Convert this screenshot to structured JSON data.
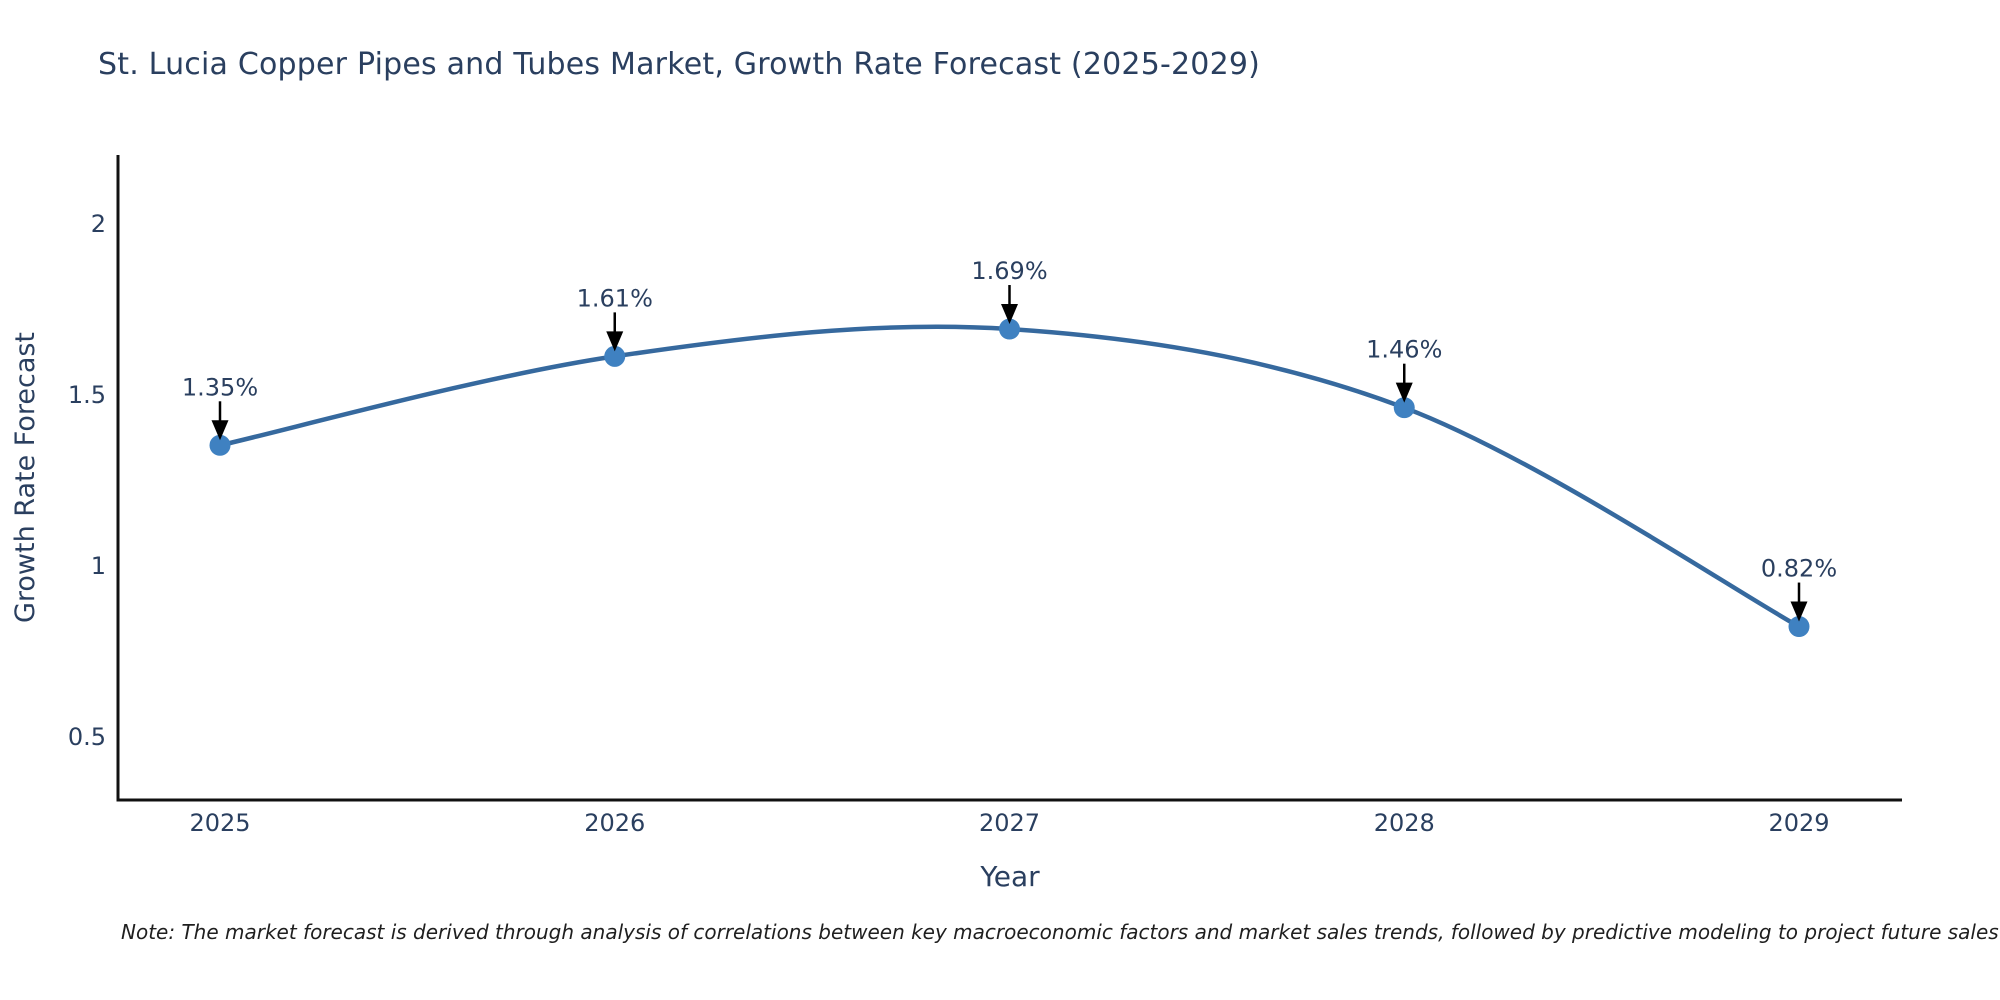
{
  "title": {
    "text": "St. Lucia Copper Pipes and Tubes Market, Growth Rate Forecast (2025-2029)",
    "color": "#2a3f5f"
  },
  "note": {
    "text": "Note: The market forecast is derived through analysis of correlations between key macroeconomic factors and market sales trends, followed by predictive modeling to project future sales"
  },
  "chart_data": {
    "type": "line",
    "x": [
      2025,
      2026,
      2027,
      2028,
      2029
    ],
    "values": [
      1.35,
      1.61,
      1.69,
      1.46,
      0.82
    ],
    "point_labels": [
      "1.35%",
      "1.61%",
      "1.69%",
      "1.46%",
      "0.82%"
    ],
    "title": "St. Lucia Copper Pipes and Tubes Market, Growth Rate Forecast (2025-2029)",
    "xlabel": "Year",
    "ylabel": "Growth Rate Forecast",
    "xticks": [
      "2025",
      "2026",
      "2027",
      "2028",
      "2029"
    ],
    "yticks": [
      0.5,
      1,
      1.5,
      2
    ],
    "ylim": [
      0.32,
      2.19
    ],
    "grid": false,
    "legend": "none",
    "line_shape": "spline",
    "colors": {
      "line": "#36699e",
      "marker": "#3f81c1",
      "arrow": "#000000",
      "axis": "#111111",
      "tick_text": "#2a3f5f",
      "axis_title_text": "#2a3f5f",
      "annotation_text": "#2a3f5f"
    }
  }
}
